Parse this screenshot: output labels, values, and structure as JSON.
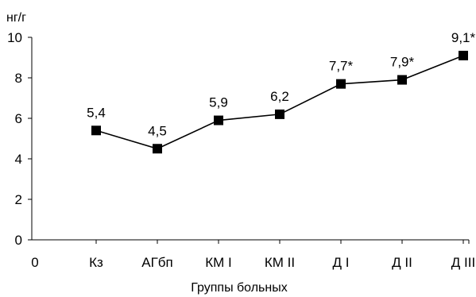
{
  "chart_data": {
    "type": "line",
    "ylabel": "нг/г",
    "xlabel": "Группы больных",
    "categories": [
      "0",
      "Кз",
      "АГбп",
      "КМ I",
      "КМ II",
      "Д I",
      "Д II",
      "Д III"
    ],
    "series": [
      {
        "values": [
          null,
          5.4,
          4.5,
          5.9,
          6.2,
          7.7,
          7.9,
          9.1
        ],
        "data_labels": [
          "",
          "5,4",
          "4,5",
          "5,9",
          "6,2",
          "7,7*",
          "7,9*",
          "9,1*"
        ]
      }
    ],
    "ylim": [
      0,
      10
    ],
    "yticks": [
      "0",
      "2",
      "4",
      "6",
      "8",
      "10"
    ],
    "grid": false,
    "legend": "none",
    "colors": {
      "line": "#000000",
      "marker": "#000000"
    }
  }
}
